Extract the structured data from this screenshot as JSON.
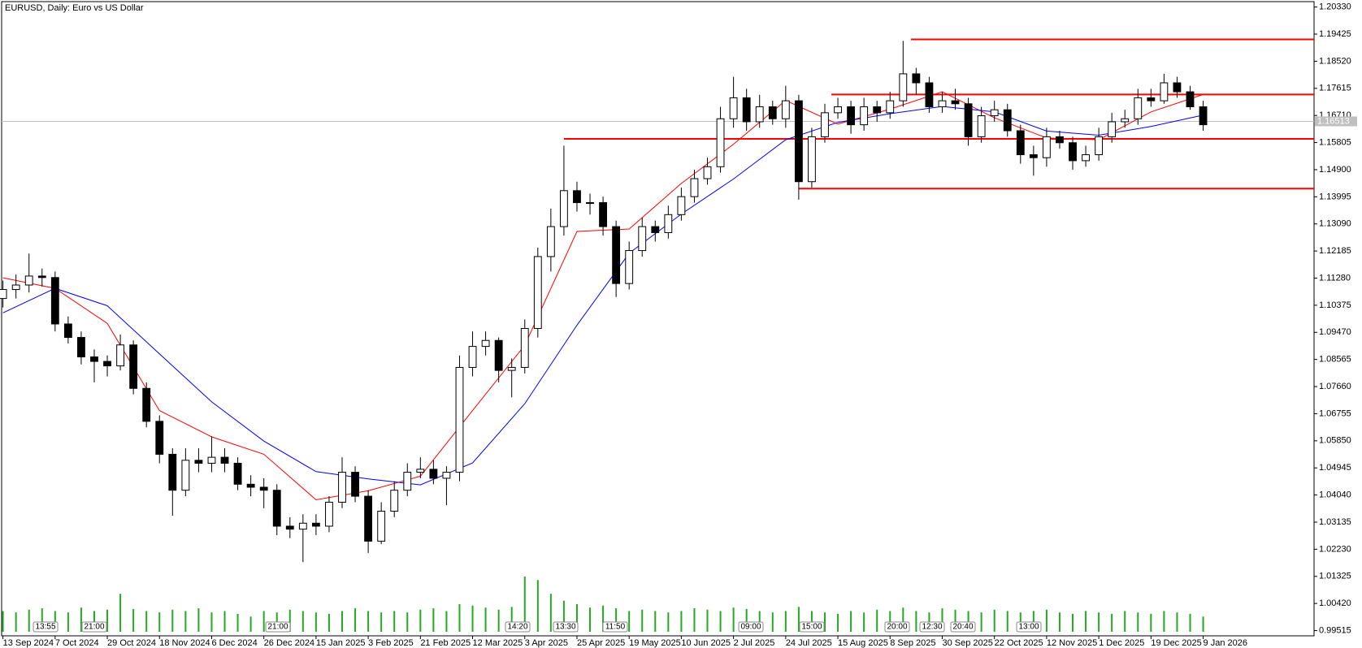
{
  "chart_data": {
    "type": "candlestick",
    "title": "EURUSD, Daily:  Euro vs US Dollar",
    "up_color": "#ffffff",
    "down_color": "#000000",
    "wick_color": "#000000",
    "open": [
      1.106,
      1.109,
      1.1105,
      1.1135,
      1.113,
      1.0975,
      1.093,
      1.0865,
      1.085,
      1.0835,
      1.0905,
      1.076,
      1.065,
      1.054,
      1.042,
      1.052,
      1.051,
      1.053,
      1.051,
      1.044,
      1.043,
      1.042,
      1.03,
      1.029,
      1.031,
      1.03,
      1.038,
      1.048,
      1.04,
      1.025,
      1.035,
      1.042,
      1.048,
      1.049,
      1.046,
      1.048,
      1.083,
      1.09,
      1.092,
      1.082,
      1.083,
      1.096,
      1.12,
      1.13,
      1.142,
      1.138,
      1.138,
      1.13,
      1.111,
      1.122,
      1.13,
      1.128,
      1.134,
      1.14,
      1.146,
      1.15,
      1.166,
      1.173,
      1.165,
      1.17,
      1.166,
      1.172,
      1.145,
      1.16,
      1.168,
      1.17,
      1.164,
      1.17,
      1.168,
      1.172,
      1.181,
      1.178,
      1.17,
      1.172,
      1.171,
      1.16,
      1.167,
      1.169,
      1.162,
      1.154,
      1.153,
      1.16,
      1.158,
      1.152,
      1.154,
      1.16,
      1.165,
      1.166,
      1.173,
      1.172,
      1.178,
      1.175,
      1.17
    ],
    "high": [
      1.112,
      1.114,
      1.121,
      1.116,
      1.115,
      1.1,
      1.095,
      1.089,
      1.087,
      1.094,
      1.092,
      1.078,
      1.067,
      1.056,
      1.056,
      1.056,
      1.06,
      1.056,
      1.053,
      1.047,
      1.046,
      1.044,
      1.033,
      1.034,
      1.034,
      1.04,
      1.053,
      1.05,
      1.042,
      1.038,
      1.045,
      1.051,
      1.053,
      1.052,
      1.05,
      1.087,
      1.095,
      1.095,
      1.093,
      1.086,
      1.099,
      1.123,
      1.136,
      1.157,
      1.145,
      1.141,
      1.14,
      1.132,
      1.125,
      1.133,
      1.132,
      1.137,
      1.143,
      1.149,
      1.153,
      1.17,
      1.18,
      1.176,
      1.174,
      1.172,
      1.177,
      1.174,
      1.163,
      1.171,
      1.173,
      1.172,
      1.173,
      1.172,
      1.175,
      1.192,
      1.183,
      1.18,
      1.175,
      1.176,
      1.173,
      1.17,
      1.172,
      1.171,
      1.164,
      1.157,
      1.163,
      1.162,
      1.16,
      1.157,
      1.163,
      1.168,
      1.169,
      1.176,
      1.176,
      1.181,
      1.18,
      1.177,
      1.172
    ],
    "low": [
      1.103,
      1.106,
      1.108,
      1.11,
      1.095,
      1.091,
      1.084,
      1.078,
      1.08,
      1.082,
      1.074,
      1.063,
      1.051,
      1.0335,
      1.04,
      1.048,
      1.048,
      1.048,
      1.042,
      1.04,
      1.036,
      1.027,
      1.026,
      1.018,
      1.027,
      1.028,
      1.036,
      1.038,
      1.021,
      1.024,
      1.033,
      1.04,
      1.046,
      1.044,
      1.037,
      1.045,
      1.08,
      1.087,
      1.078,
      1.073,
      1.081,
      1.093,
      1.115,
      1.127,
      1.135,
      1.134,
      1.127,
      1.1065,
      1.109,
      1.12,
      1.125,
      1.126,
      1.132,
      1.138,
      1.144,
      1.148,
      1.163,
      1.162,
      1.163,
      1.164,
      1.163,
      1.139,
      1.143,
      1.158,
      1.166,
      1.161,
      1.162,
      1.165,
      1.166,
      1.17,
      1.174,
      1.168,
      1.168,
      1.169,
      1.157,
      1.158,
      1.165,
      1.16,
      1.151,
      1.147,
      1.15,
      1.156,
      1.149,
      1.15,
      1.152,
      1.158,
      1.163,
      1.164,
      1.17,
      1.171,
      1.173,
      1.169,
      1.162
    ],
    "close": [
      1.109,
      1.1105,
      1.1135,
      1.113,
      1.0975,
      1.093,
      1.0865,
      1.085,
      1.0835,
      1.0905,
      1.076,
      1.065,
      1.054,
      1.042,
      1.052,
      1.051,
      1.053,
      1.051,
      1.044,
      1.043,
      1.042,
      1.03,
      1.029,
      1.031,
      1.03,
      1.038,
      1.048,
      1.04,
      1.025,
      1.035,
      1.042,
      1.048,
      1.049,
      1.046,
      1.048,
      1.083,
      1.09,
      1.092,
      1.082,
      1.083,
      1.096,
      1.12,
      1.13,
      1.142,
      1.138,
      1.138,
      1.13,
      1.111,
      1.122,
      1.13,
      1.128,
      1.134,
      1.14,
      1.146,
      1.15,
      1.166,
      1.173,
      1.165,
      1.17,
      1.166,
      1.172,
      1.145,
      1.16,
      1.168,
      1.17,
      1.164,
      1.17,
      1.168,
      1.172,
      1.181,
      1.178,
      1.17,
      1.172,
      1.171,
      1.16,
      1.167,
      1.169,
      1.162,
      1.154,
      1.153,
      1.16,
      1.158,
      1.152,
      1.154,
      1.16,
      1.165,
      1.166,
      1.173,
      1.172,
      1.178,
      1.175,
      1.17,
      1.164
    ],
    "volume": [
      30,
      28,
      32,
      34,
      30,
      28,
      35,
      30,
      32,
      55,
      33,
      30,
      28,
      32,
      30,
      34,
      28,
      30,
      26,
      22,
      30,
      28,
      32,
      30,
      28,
      26,
      30,
      34,
      30,
      28,
      30,
      28,
      32,
      34,
      30,
      40,
      38,
      35,
      32,
      36,
      80,
      75,
      55,
      45,
      40,
      35,
      38,
      34,
      30,
      32,
      30,
      28,
      30,
      34,
      32,
      30,
      35,
      33,
      30,
      28,
      30,
      36,
      30,
      28,
      26,
      30,
      28,
      32,
      30,
      35,
      30,
      28,
      34,
      32,
      30,
      28,
      32,
      30,
      28,
      30,
      32,
      28,
      26,
      30,
      28,
      26,
      30,
      28,
      26,
      30,
      28,
      26,
      22
    ],
    "volume_color": "#22aa22",
    "moving_averages": [
      {
        "color": "#ff0000",
        "x": [
          0,
          4,
          8,
          12,
          16,
          20,
          24,
          28,
          32,
          36,
          40,
          44,
          48,
          52,
          56,
          60,
          64,
          68,
          72,
          76,
          80,
          84,
          88,
          92
        ],
        "values": [
          1.1129,
          1.1094,
          1.0977,
          1.0686,
          1.0598,
          1.054,
          1.0388,
          1.0418,
          1.0467,
          1.0686,
          1.0904,
          1.1284,
          1.1292,
          1.1444,
          1.1575,
          1.1721,
          1.1642,
          1.1692,
          1.175,
          1.1663,
          1.1596,
          1.159,
          1.1683,
          1.1741
        ]
      },
      {
        "color": "#0000ff",
        "x": [
          0,
          4,
          8,
          12,
          16,
          20,
          24,
          28,
          32,
          36,
          40,
          44,
          48,
          52,
          56,
          60,
          64,
          68,
          72,
          76,
          80,
          84,
          88,
          92
        ],
        "values": [
          1.1012,
          1.1094,
          1.1036,
          1.0875,
          1.0715,
          1.0584,
          1.0482,
          1.0458,
          1.0438,
          1.0511,
          1.0709,
          1.0971,
          1.1211,
          1.1342,
          1.1459,
          1.159,
          1.1648,
          1.1677,
          1.1701,
          1.1683,
          1.1619,
          1.1605,
          1.1634,
          1.1672
        ]
      }
    ],
    "levels": [
      {
        "value": 1.1925,
        "x0": 69.6,
        "color": "#ff0000"
      },
      {
        "value": 1.1741,
        "x0": 63.5,
        "color": "#ff0000"
      },
      {
        "value": 1.1593,
        "x0": 43,
        "color": "#ff0000"
      },
      {
        "value": 1.1427,
        "x0": 61,
        "color": "#ff0000"
      }
    ],
    "last_price": 1.16513,
    "time_labels": [
      "13:55",
      "21:00",
      "21:00",
      "14:20",
      "13:30",
      "11:50",
      "09:00",
      "15:00",
      "20:00",
      "12:30",
      "20:40",
      "13:00"
    ],
    "xlim": [
      -0.1,
      100.5
    ],
    "xticks": [
      {
        "value": 0,
        "label": "13 Sep 2024"
      },
      {
        "value": 4,
        "label": "7 Oct 2024"
      },
      {
        "value": 8,
        "label": "29 Oct 2024"
      },
      {
        "value": 12,
        "label": "18 Nov 2024"
      },
      {
        "value": 16,
        "label": "6 Dec 2024"
      },
      {
        "value": 20,
        "label": "26 Dec 2024"
      },
      {
        "value": 24,
        "label": "15 Jan 2025"
      },
      {
        "value": 28,
        "label": "3 Feb 2025"
      },
      {
        "value": 32,
        "label": "21 Feb 2025"
      },
      {
        "value": 36,
        "label": "12 Mar 2025"
      },
      {
        "value": 40,
        "label": "3 Apr 2025"
      },
      {
        "value": 44,
        "label": "25 Apr 2025"
      },
      {
        "value": 48,
        "label": "19 May 2025"
      },
      {
        "value": 52,
        "label": "10 Jun 2025"
      },
      {
        "value": 56,
        "label": "2 Jul 2025"
      },
      {
        "value": 60,
        "label": "24 Jul 2025"
      },
      {
        "value": 64,
        "label": "15 Aug 2025"
      },
      {
        "value": 68,
        "label": "8 Sep 2025"
      },
      {
        "value": 72,
        "label": "30 Sep 2025"
      },
      {
        "value": 76,
        "label": "22 Oct 2025"
      },
      {
        "value": 80,
        "label": "12 Nov 2025"
      },
      {
        "value": 84,
        "label": "1 Dec 2025"
      },
      {
        "value": 88,
        "label": "19 Dec 2025"
      },
      {
        "value": 92,
        "label": "9 Jan 2026"
      }
    ],
    "ylim": [
      0.9934,
      1.2051
    ],
    "yticks": [
      {
        "value": 1.2033,
        "label": "1.20330"
      },
      1.19425,
      {
        "value": 1.1852,
        "label": "1.18520"
      },
      1.17615,
      {
        "value": 1.1671,
        "label": "1.16710"
      },
      1.15805,
      {
        "value": 1.149,
        "label": "1.14900"
      },
      1.13995,
      {
        "value": 1.1309,
        "label": "1.13090"
      },
      1.12185,
      {
        "value": 1.1128,
        "label": "1.11280"
      },
      1.10375,
      {
        "value": 1.0947,
        "label": "1.09470"
      },
      1.08565,
      {
        "value": 1.0766,
        "label": "1.07660"
      },
      1.06755,
      {
        "value": 1.0585,
        "label": "1.05850"
      },
      1.04945,
      {
        "value": 1.0404,
        "label": "1.04040"
      },
      1.03135,
      {
        "value": 1.0223,
        "label": "1.02230"
      },
      1.01325,
      {
        "value": 1.0042,
        "label": "1.00420"
      },
      0.99515
    ]
  }
}
